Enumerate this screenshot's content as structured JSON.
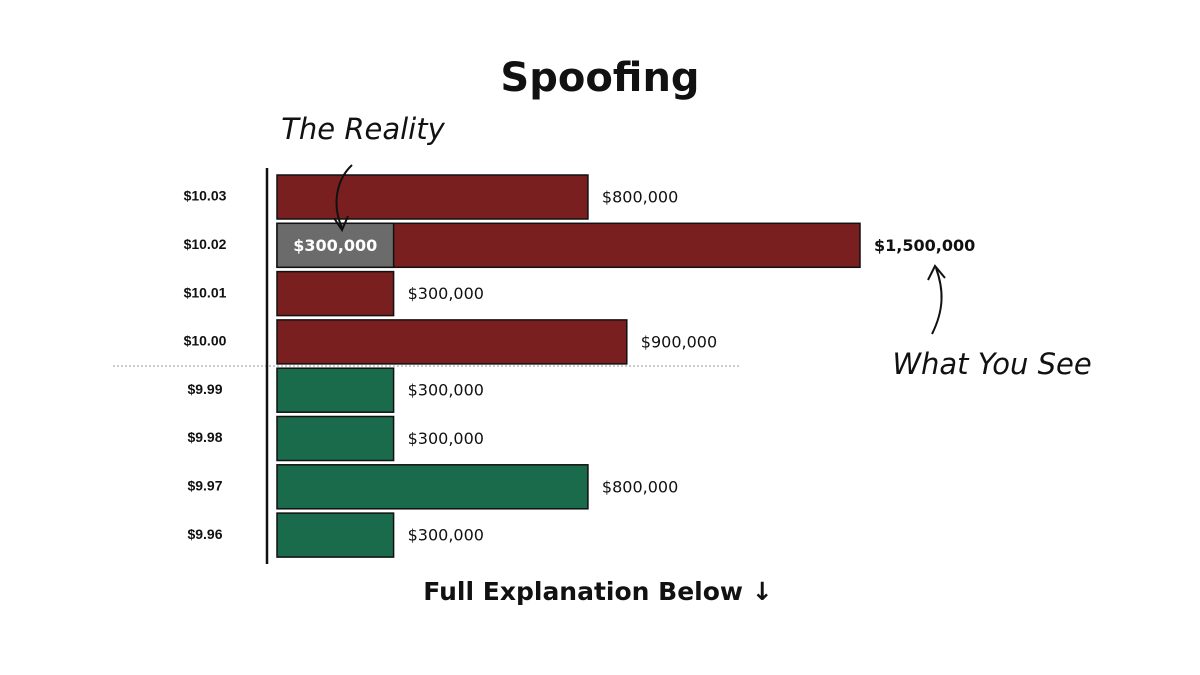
{
  "chart_data": {
    "type": "hbar",
    "title": "Spoofing",
    "categories": [
      "$10.03",
      "$10.02",
      "$10.01",
      "$10.00",
      "$9.99",
      "$9.98",
      "$9.97",
      "$9.96"
    ],
    "values": [
      800000,
      1500000,
      300000,
      900000,
      300000,
      300000,
      800000,
      300000
    ],
    "value_labels": [
      "$800,000",
      "$1,500,000",
      "$300,000",
      "$900,000",
      "$300,000",
      "$300,000",
      "$800,000",
      "$300,000"
    ],
    "colors": [
      "#7a1f1f",
      "#7a1f1f",
      "#7a1f1f",
      "#7a1f1f",
      "#1a6b4c",
      "#1a6b4c",
      "#1a6b4c",
      "#1a6b4c"
    ],
    "overlay_values": [
      null,
      300000,
      null,
      null,
      null,
      null,
      null,
      null
    ],
    "overlay_value_labels": [
      null,
      "$300,000",
      null,
      null,
      null,
      null,
      null,
      null
    ],
    "overlay_color": "#6b6b6b",
    "xlim": [
      0,
      1500000
    ],
    "annotations": [
      "The Reality",
      "What You See"
    ],
    "footer": "Full Explanation Below ↓"
  }
}
